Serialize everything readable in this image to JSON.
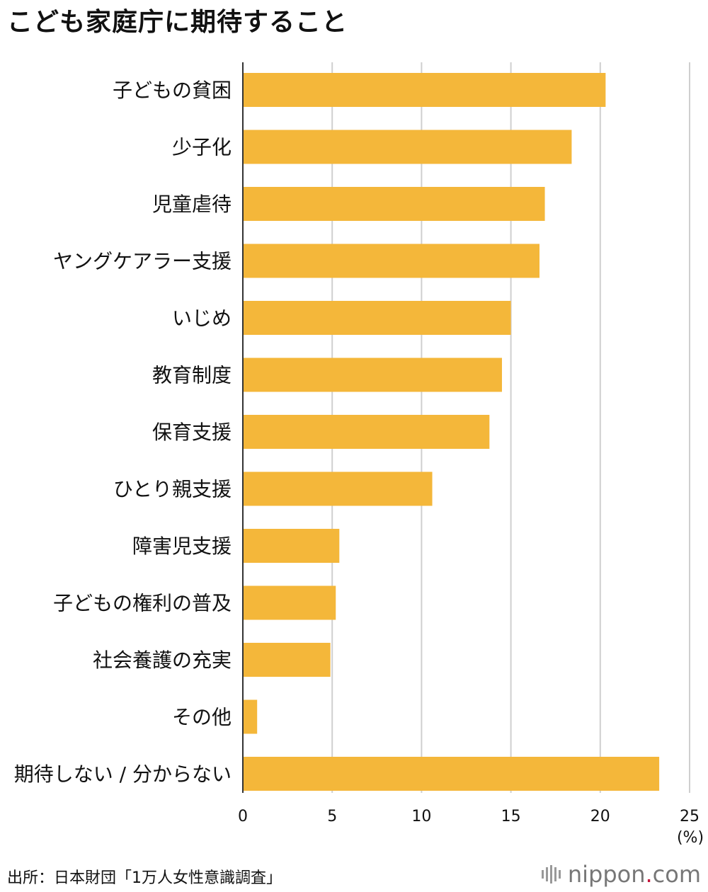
{
  "title": "こども家庭庁に期待すること",
  "source": "出所：日本財団「1万人女性意識調査」",
  "brand": {
    "name": "nippon",
    "dot": ".",
    "suffix": "com",
    "accent_color": "#c5143a"
  },
  "colors": {
    "bar": "#f4b73a",
    "grid": "#cfcfcf",
    "axis": "#333333"
  },
  "chart_data": {
    "type": "bar",
    "orientation": "horizontal",
    "categories": [
      "子どもの貧困",
      "少子化",
      "児童虐待",
      "ヤングケアラー支援",
      "いじめ",
      "教育制度",
      "保育支援",
      "ひとり親支援",
      "障害児支援",
      "子どもの権利の普及",
      "社会養護の充実",
      "その他",
      "期待しない / 分からない"
    ],
    "values": [
      20.3,
      18.4,
      16.9,
      16.6,
      15.0,
      14.5,
      13.8,
      10.6,
      5.4,
      5.2,
      4.9,
      0.8,
      23.3
    ],
    "xlim": [
      0,
      25
    ],
    "xticks": [
      "0",
      "5",
      "10",
      "15",
      "20",
      "25"
    ],
    "xunit": "(%)",
    "grid": true
  }
}
